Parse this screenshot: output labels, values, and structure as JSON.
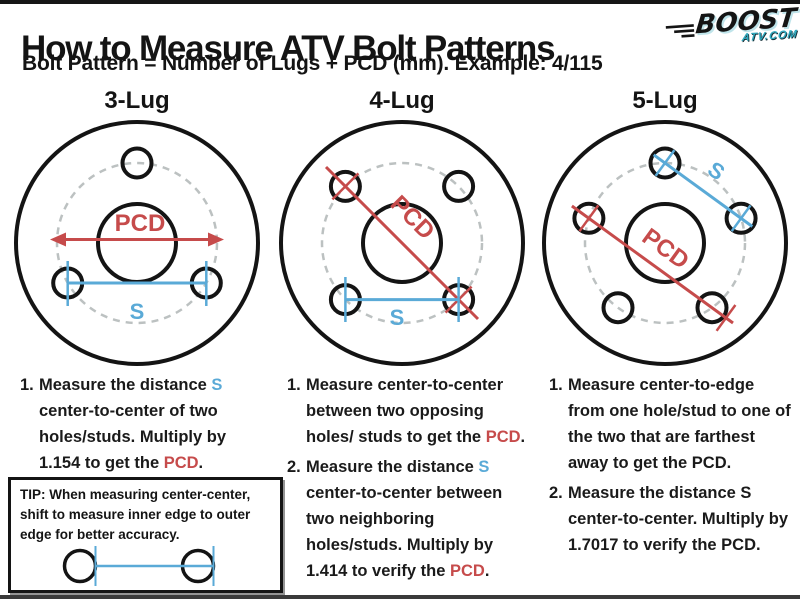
{
  "header": {
    "title": "How to Measure ATV Bolt Patterns",
    "subtitle": "Bolt Pattern = Number of Lugs + PCD (mm). Example: 4/115"
  },
  "logo": {
    "brand": "BOOST",
    "domain": "ATV.COM"
  },
  "colors": {
    "red": "#c64b4b",
    "blue": "#5aaad7",
    "dashed": "#bcc1c1",
    "teal": "#2ba7bd",
    "ink": "#1a1a1a"
  },
  "diagrams": [
    {
      "name": "3-Lug",
      "pcd_label": "PCD",
      "s_label": "S"
    },
    {
      "name": "4-Lug",
      "pcd_label": "PCD",
      "s_label": "S"
    },
    {
      "name": "5-Lug",
      "pcd_label": "PCD",
      "s_label": "S"
    }
  ],
  "instructions": {
    "col1": [
      {
        "number": "1.",
        "segments": [
          {
            "t": "Measure the distance ",
            "c": "ink"
          },
          {
            "t": "S",
            "c": "blue"
          },
          {
            "t": " center-to-center of two holes/studs. Multiply by 1.154 to get the ",
            "c": "ink"
          },
          {
            "t": "PCD",
            "c": "red"
          },
          {
            "t": ".",
            "c": "ink"
          }
        ]
      }
    ],
    "col2": [
      {
        "number": "1.",
        "segments": [
          {
            "t": "Measure center-to-center between two opposing holes/ studs to get the ",
            "c": "ink"
          },
          {
            "t": "PCD",
            "c": "red"
          },
          {
            "t": ".",
            "c": "ink"
          }
        ]
      },
      {
        "number": "2.",
        "segments": [
          {
            "t": "Measure the distance ",
            "c": "ink"
          },
          {
            "t": "S",
            "c": "blue"
          },
          {
            "t": " center-to-center between two neighboring holes/studs. Multiply by 1.414 to verify the ",
            "c": "ink"
          },
          {
            "t": "PCD",
            "c": "red"
          },
          {
            "t": ".",
            "c": "ink"
          }
        ]
      }
    ],
    "col3": [
      {
        "number": "1.",
        "segments": [
          {
            "t": "Measure center-to-edge from one hole/stud to one of the two that are farthest away to get the PCD.",
            "c": "ink"
          }
        ]
      },
      {
        "number": "2.",
        "segments": [
          {
            "t": "Measure the distance S center-to-center. Multiply by 1.7017 to verify the PCD.",
            "c": "ink"
          }
        ]
      }
    ]
  },
  "tip": {
    "text": "TIP: When measuring center-center, shift to measure inner edge to outer edge for better accuracy."
  }
}
